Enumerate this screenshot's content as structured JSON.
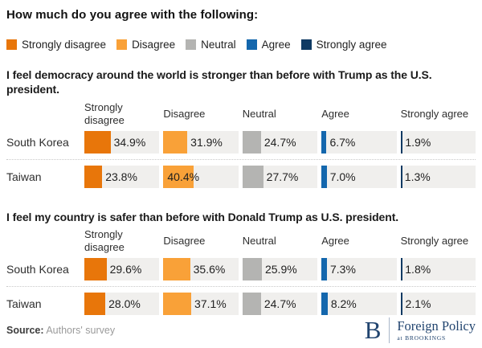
{
  "page_title": "How much do you agree with the following:",
  "palette": {
    "strongly_disagree": "#E8760A",
    "disagree": "#F9A138",
    "neutral": "#B4B4B2",
    "agree": "#1467AD",
    "strongly_agree": "#0F3A63",
    "bar_track": "#F0EFED",
    "brand_navy": "#21446F"
  },
  "legend": {
    "items": [
      {
        "label": "Strongly disagree",
        "color": "#E8760A"
      },
      {
        "label": "Disagree",
        "color": "#F9A138"
      },
      {
        "label": "Neutral",
        "color": "#B4B4B2"
      },
      {
        "label": "Agree",
        "color": "#1467AD"
      },
      {
        "label": "Strongly agree",
        "color": "#0F3A63"
      }
    ]
  },
  "chart_data": [
    {
      "type": "bar",
      "orientation": "horizontal",
      "title": "I feel democracy around the world is stronger than before with Trump as the U.S. president.",
      "categories": [
        "South Korea",
        "Taiwan"
      ],
      "series": [
        {
          "name": "Strongly disagree",
          "color": "#E8760A",
          "values": [
            34.9,
            23.8
          ],
          "labels": [
            "34.9%",
            "23.8%"
          ]
        },
        {
          "name": "Disagree",
          "color": "#F9A138",
          "values": [
            31.9,
            40.4
          ],
          "labels": [
            "31.9%",
            "40.4%"
          ]
        },
        {
          "name": "Neutral",
          "color": "#B4B4B2",
          "values": [
            24.7,
            27.7
          ],
          "labels": [
            "24.7%",
            "27.7%"
          ]
        },
        {
          "name": "Agree",
          "color": "#1467AD",
          "values": [
            6.7,
            7.0
          ],
          "labels": [
            "6.7%",
            "7.0%"
          ]
        },
        {
          "name": "Strongly agree",
          "color": "#0F3A63",
          "values": [
            1.9,
            1.3
          ],
          "labels": [
            "1.9%",
            "1.3%"
          ]
        }
      ],
      "value_unit": "%",
      "xlim": [
        0,
        100
      ],
      "grid": false,
      "legend_position": "top"
    },
    {
      "type": "bar",
      "orientation": "horizontal",
      "title": "I feel my country is safer than before with Donald Trump as U.S. president.",
      "categories": [
        "South Korea",
        "Taiwan"
      ],
      "series": [
        {
          "name": "Strongly disagree",
          "color": "#E8760A",
          "values": [
            29.6,
            28.0
          ],
          "labels": [
            "29.6%",
            "28.0%"
          ]
        },
        {
          "name": "Disagree",
          "color": "#F9A138",
          "values": [
            35.6,
            37.1
          ],
          "labels": [
            "35.6%",
            "37.1%"
          ]
        },
        {
          "name": "Neutral",
          "color": "#B4B4B2",
          "values": [
            25.9,
            24.7
          ],
          "labels": [
            "25.9%",
            "24.7%"
          ]
        },
        {
          "name": "Agree",
          "color": "#1467AD",
          "values": [
            7.3,
            8.2
          ],
          "labels": [
            "7.3%",
            "8.2%"
          ]
        },
        {
          "name": "Strongly agree",
          "color": "#0F3A63",
          "values": [
            1.8,
            2.1
          ],
          "labels": [
            "1.8%",
            "2.1%"
          ]
        }
      ],
      "value_unit": "%",
      "xlim": [
        0,
        100
      ],
      "grid": false,
      "legend_position": "top"
    }
  ],
  "footer": {
    "source_label": "Source:",
    "source_text": "Authors' survey",
    "logo": {
      "initial": "B",
      "name": "Foreign Policy",
      "sub": "at BROOKINGS"
    }
  }
}
